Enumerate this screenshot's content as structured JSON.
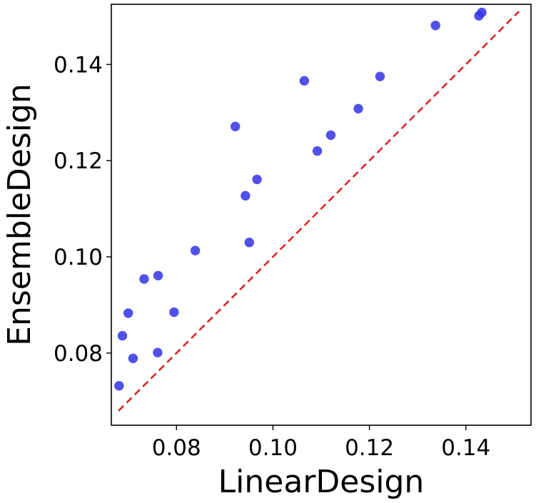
{
  "chart_data": {
    "type": "scatter",
    "title": "",
    "xlabel": "LinearDesign",
    "ylabel": "EnsembleDesign",
    "xlim": [
      0.0665,
      0.1535
    ],
    "ylim": [
      0.065,
      0.1525
    ],
    "xticks": [
      0.08,
      0.1,
      0.12,
      0.14
    ],
    "yticks": [
      0.08,
      0.1,
      0.12,
      0.14
    ],
    "xtick_labels": [
      "0.08",
      "0.10",
      "0.12",
      "0.14"
    ],
    "ytick_labels": [
      "0.08",
      "0.10",
      "0.12",
      "0.14"
    ],
    "grid": false,
    "point_color": "#3333e6",
    "reference_line": {
      "style": "dashed",
      "color": "#d62728",
      "x": [
        0.068,
        0.151
      ],
      "y": [
        0.068,
        0.151
      ]
    },
    "points": [
      {
        "x": 0.0681,
        "y": 0.0732
      },
      {
        "x": 0.0688,
        "y": 0.0836
      },
      {
        "x": 0.07,
        "y": 0.0883
      },
      {
        "x": 0.071,
        "y": 0.0789
      },
      {
        "x": 0.0733,
        "y": 0.0954
      },
      {
        "x": 0.0761,
        "y": 0.0801
      },
      {
        "x": 0.0762,
        "y": 0.0961
      },
      {
        "x": 0.0795,
        "y": 0.0885
      },
      {
        "x": 0.0839,
        "y": 0.1013
      },
      {
        "x": 0.0922,
        "y": 0.1271
      },
      {
        "x": 0.0943,
        "y": 0.1127
      },
      {
        "x": 0.0951,
        "y": 0.103
      },
      {
        "x": 0.0967,
        "y": 0.1161
      },
      {
        "x": 0.1065,
        "y": 0.1366
      },
      {
        "x": 0.1092,
        "y": 0.122
      },
      {
        "x": 0.112,
        "y": 0.1253
      },
      {
        "x": 0.1177,
        "y": 0.1308
      },
      {
        "x": 0.1222,
        "y": 0.1375
      },
      {
        "x": 0.1337,
        "y": 0.1481
      },
      {
        "x": 0.1427,
        "y": 0.1501
      },
      {
        "x": 0.1433,
        "y": 0.1508
      }
    ]
  }
}
